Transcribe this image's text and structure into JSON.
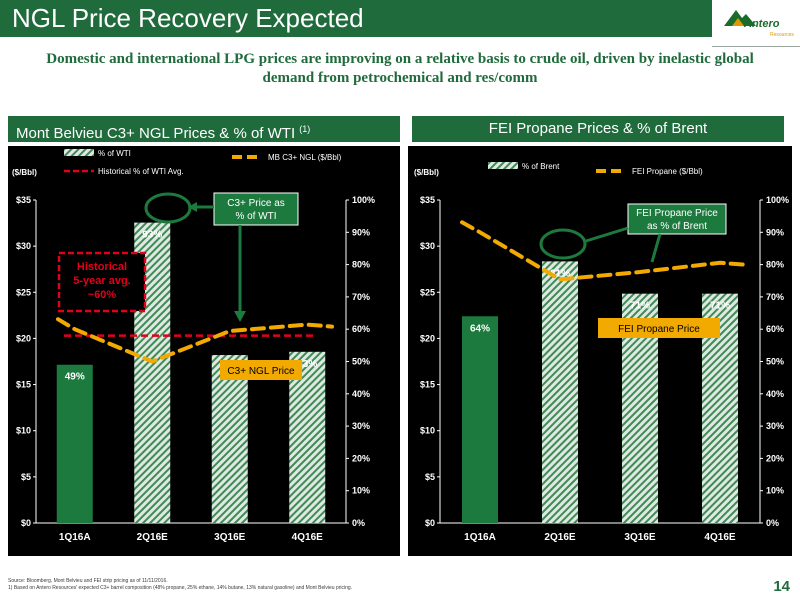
{
  "slide": {
    "title": "NGL Price Recovery Expected",
    "logo_text": "Antero",
    "logo_sub": "Resources",
    "subtitle": "Domestic and international LPG prices are improving on a relative basis to crude oil, driven by inelastic global demand from petrochemical and res/comm",
    "page_number": "14",
    "footnote_lines": [
      "Source: Bloomberg, Mont Belvieu and FEI strip pricing as of 11/11/2016.",
      "1)  Based on Antero Resources' expected C3+ barrel composition (48% propane, 25% ethane, 14% butane, 13% natural gasoline) and Mont Belvieu pricing."
    ]
  },
  "colors": {
    "brand_green": "#1f6b3c",
    "bar_solid": "#1d7a3e",
    "hatch_light": "#dfe9e2",
    "hatch_dark": "#3f8a56",
    "orange": "#f2a900",
    "red": "#e2001a"
  },
  "chart_data": [
    {
      "type": "bar",
      "title": "Mont Belvieu C3+ NGL Prices & % of WTI",
      "title_note": "(1)",
      "categories": [
        "1Q16A",
        "2Q16E",
        "3Q16E",
        "4Q16E"
      ],
      "y_unit_label": "($/Bbl)",
      "ylim": [
        0,
        35
      ],
      "yticks": [
        "$0",
        "$5",
        "$10",
        "$15",
        "$20",
        "$25",
        "$30",
        "$35"
      ],
      "y2lim": [
        0,
        100
      ],
      "y2ticks": [
        "0%",
        "10%",
        "20%",
        "30%",
        "40%",
        "50%",
        "60%",
        "70%",
        "80%",
        "90%",
        "100%"
      ],
      "legend": {
        "bars_label": "% of WTI",
        "line_label": "MB C3+ NGL ($/Bbl)",
        "ref_label": "Historical % of WTI Avg."
      },
      "bars": {
        "values_pct": [
          49,
          93,
          52,
          53
        ],
        "labels": [
          "49%",
          "93%",
          "52%",
          "53%"
        ],
        "solid_count": 1
      },
      "line": {
        "values": [
          21,
          17.5,
          20.8,
          21.5
        ]
      },
      "reference_pct": 58,
      "historical_box_text": [
        "Historical",
        "5-year avg.",
        "~60%"
      ],
      "callouts": {
        "ratio_label": "C3+ Price as % of WTI",
        "line_label": "C3+ NGL Price"
      }
    },
    {
      "type": "bar",
      "title": "FEI Propane Prices & % of Brent",
      "categories": [
        "1Q16A",
        "2Q16E",
        "3Q16E",
        "4Q16E"
      ],
      "y_unit_label": "($/Bbl)",
      "ylim": [
        0,
        35
      ],
      "yticks": [
        "$0",
        "$5",
        "$10",
        "$15",
        "$20",
        "$25",
        "$30",
        "$35"
      ],
      "y2lim": [
        0,
        100
      ],
      "y2ticks": [
        "0%",
        "10%",
        "20%",
        "30%",
        "40%",
        "50%",
        "60%",
        "70%",
        "80%",
        "90%",
        "100%"
      ],
      "legend": {
        "bars_label": "% of Brent",
        "line_label": "FEI Propane ($/Bbl)"
      },
      "bars": {
        "values_pct": [
          64,
          81,
          71,
          71
        ],
        "labels": [
          "64%",
          "81%",
          "71%",
          "71%"
        ],
        "solid_count": 1
      },
      "line": {
        "values": [
          31.5,
          26.4,
          27.2,
          28.2
        ]
      },
      "callouts": {
        "ratio_label": "FEI Propane Price as % of Brent",
        "line_label": "FEI Propane Price"
      }
    }
  ]
}
